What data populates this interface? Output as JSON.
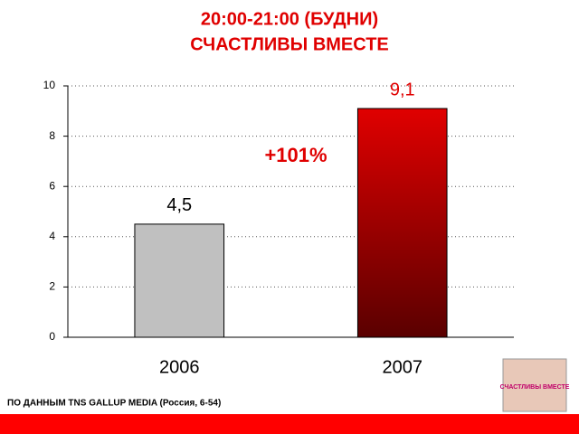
{
  "chart_data": {
    "type": "bar",
    "title": [
      "20:00-21:00 (БУДНИ)",
      "СЧАСТЛИВЫ ВМЕСТЕ"
    ],
    "categories": [
      "2006",
      "2007"
    ],
    "values": [
      4.5,
      9.1
    ],
    "value_labels": [
      "4,5",
      "9,1"
    ],
    "colors": [
      "#c0c0c0",
      "#e00000"
    ],
    "label_colors": [
      "#000000",
      "#e00000"
    ],
    "annotation": "+101%",
    "source": "ПО ДАННЫМ TNS GALLUP MEDIA (Россия, 6-54)",
    "poster_text": "СЧАСТЛИВЫ ВМЕСТЕ",
    "ylim": [
      0,
      10
    ],
    "yticks": [
      0,
      2,
      4,
      6,
      8,
      10
    ],
    "grid": true
  }
}
